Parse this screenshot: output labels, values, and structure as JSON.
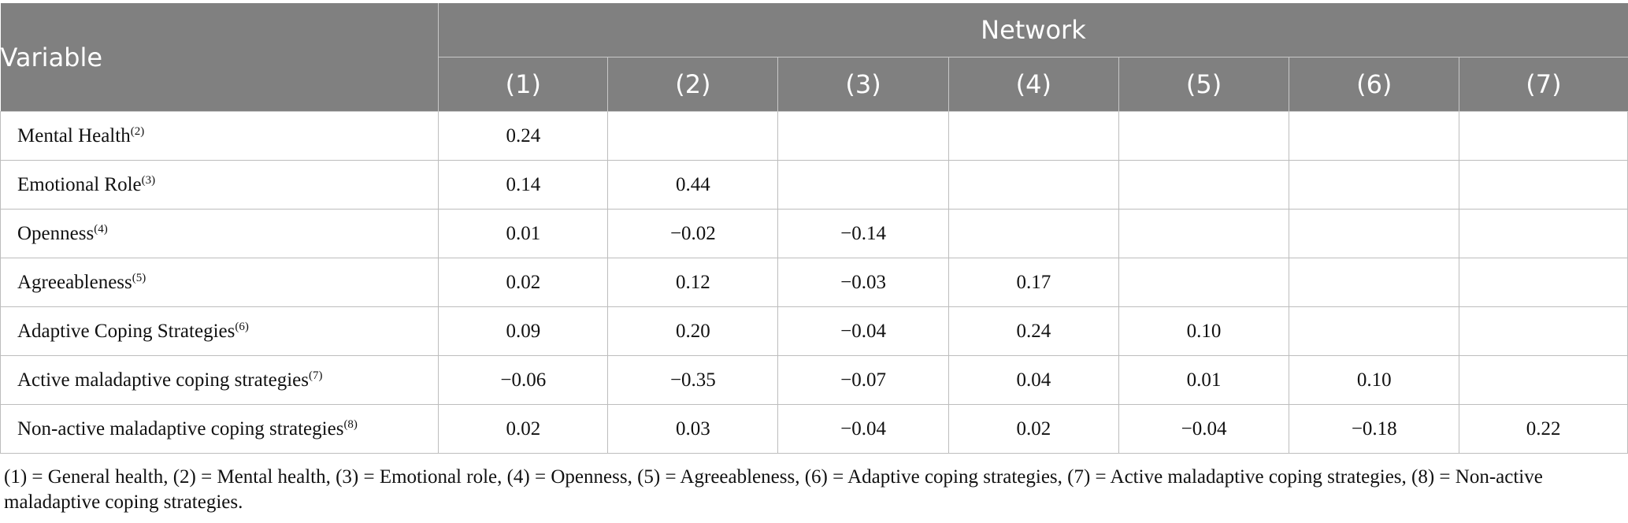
{
  "table": {
    "variable_header": "Variable",
    "group_header": "Network",
    "columns": [
      "(1)",
      "(2)",
      "(3)",
      "(4)",
      "(5)",
      "(6)",
      "(7)"
    ],
    "rows": [
      {
        "label": "Mental Health",
        "sup": "(2)",
        "values": [
          "0.24",
          "",
          "",
          "",
          "",
          "",
          ""
        ]
      },
      {
        "label": "Emotional Role",
        "sup": "(3)",
        "values": [
          "0.14",
          "0.44",
          "",
          "",
          "",
          "",
          ""
        ]
      },
      {
        "label": "Openness",
        "sup": "(4)",
        "values": [
          "0.01",
          "−0.02",
          "−0.14",
          "",
          "",
          "",
          ""
        ]
      },
      {
        "label": "Agreeableness",
        "sup": "(5)",
        "values": [
          "0.02",
          "0.12",
          "−0.03",
          "0.17",
          "",
          "",
          ""
        ]
      },
      {
        "label": "Adaptive Coping Strategies",
        "sup": "(6)",
        "values": [
          "0.09",
          "0.20",
          "−0.04",
          "0.24",
          "0.10",
          "",
          ""
        ]
      },
      {
        "label": "Active maladaptive coping strategies",
        "sup": "(7)",
        "values": [
          "−0.06",
          "−0.35",
          "−0.07",
          "0.04",
          "0.01",
          "0.10",
          ""
        ]
      },
      {
        "label": "Non-active maladaptive coping strategies",
        "sup": "(8)",
        "values": [
          "0.02",
          "0.03",
          "−0.04",
          "0.02",
          "−0.04",
          "−0.18",
          "0.22"
        ]
      }
    ]
  },
  "footnote": "(1) = General health, (2) = Mental health, (3) = Emotional role, (4) = Openness, (5) = Agreeableness, (6) = Adaptive coping strategies, (7) = Active maladaptive coping strategies, (8) = Non-active maladaptive coping strategies.",
  "colors": {
    "header_bg": "#808080",
    "header_text": "#ffffff",
    "grid": "#bdbdbd"
  }
}
